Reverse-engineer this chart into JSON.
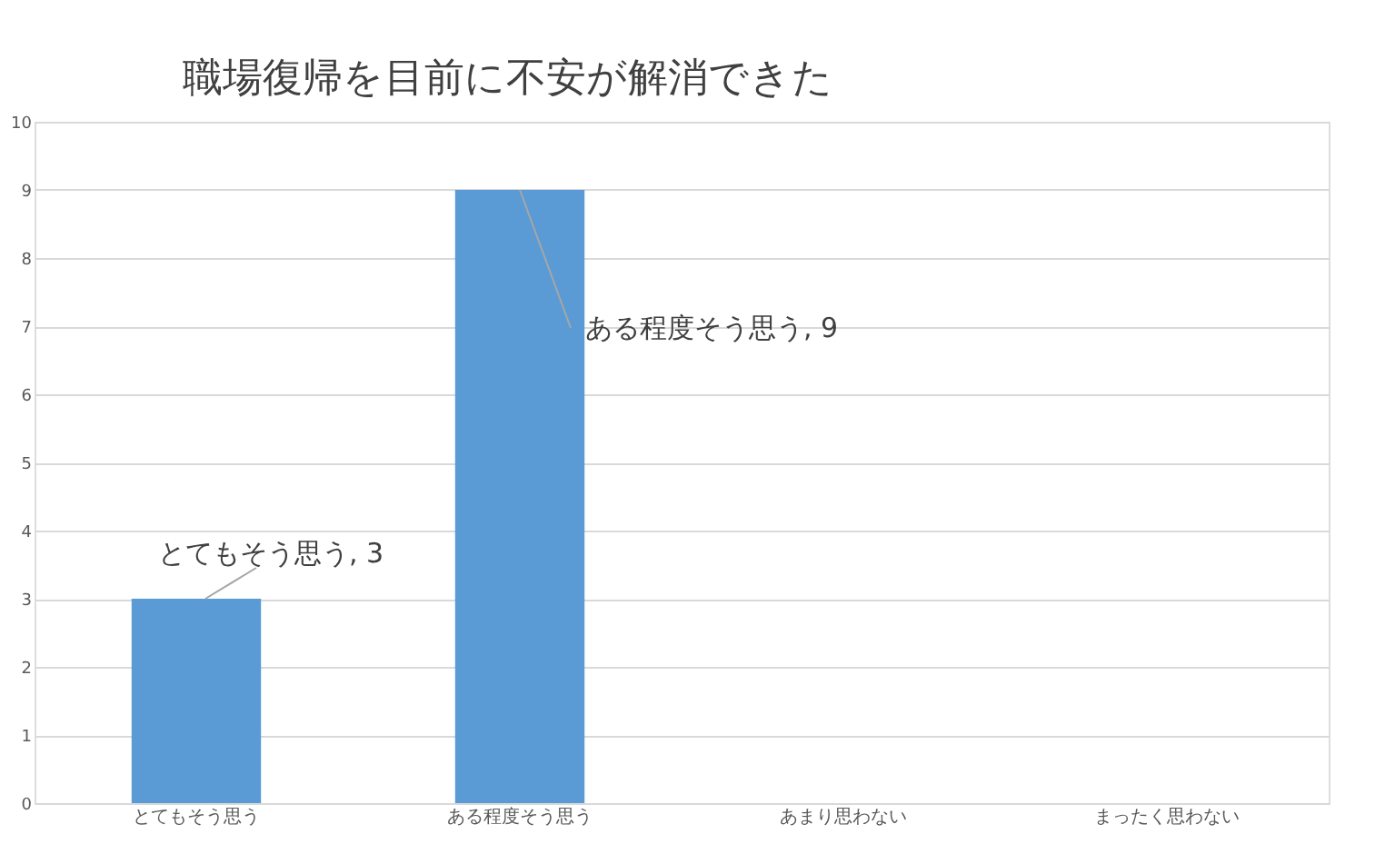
{
  "chart_data": {
    "type": "bar",
    "title": "職場復帰を目前に不安が解消できた",
    "categories": [
      "とてもそう思う",
      "ある程度そう思う",
      "あまり思わない",
      "まったく思わない"
    ],
    "values": [
      3,
      9,
      0,
      0
    ],
    "color": "#5b9bd5",
    "ylim": [
      0,
      10
    ],
    "yticks": [
      0,
      1,
      2,
      3,
      4,
      5,
      6,
      7,
      8,
      9,
      10
    ],
    "grid": "y",
    "annotations": [
      {
        "text": "とてもそう思う, 3",
        "x": "とてもそう思う",
        "y": 3
      },
      {
        "text": "ある程度そう思う, 9",
        "x": "ある程度そう思う",
        "y": 9
      }
    ]
  }
}
